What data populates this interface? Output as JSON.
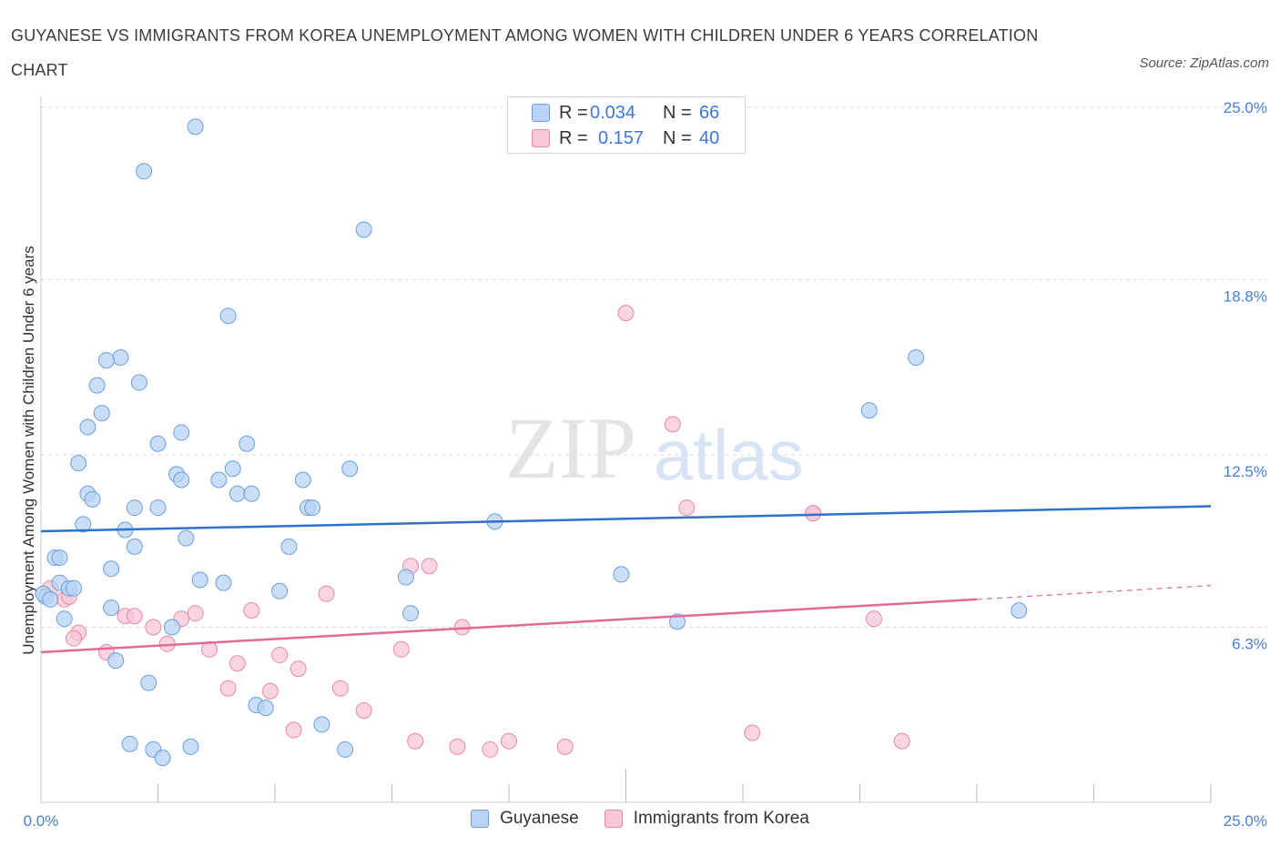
{
  "title": "GUYANESE VS IMMIGRANTS FROM KOREA UNEMPLOYMENT AMONG WOMEN WITH CHILDREN UNDER 6 YEARS CORRELATION CHART",
  "source": "Source: ZipAtlas.com",
  "watermark": {
    "zip": "ZIP",
    "atlas": "atlas"
  },
  "colors": {
    "guyanese_fill": "#b8d3f5",
    "guyanese_stroke": "#6a9fdc",
    "guyanese_line": "#2f72cc",
    "korea_fill": "#f8c6d5",
    "korea_stroke": "#e58aa8",
    "korea_line": "#e06b98",
    "tick_text": "#4a7fd1",
    "grid": "#d8d8d8"
  },
  "legend": {
    "rows": [
      {
        "r_label": "R =",
        "r_value": "0.034",
        "n_label": "N =",
        "n_value": "66"
      },
      {
        "r_label": "R =",
        "r_value": "0.157",
        "n_label": "N =",
        "n_value": "40"
      }
    ]
  },
  "bottom_legend": [
    "Guyanese",
    "Immigrants from Korea"
  ],
  "chart_data": {
    "type": "scatter",
    "title": "GUYANESE VS IMMIGRANTS FROM KOREA UNEMPLOYMENT AMONG WOMEN WITH CHILDREN UNDER 6 YEARS CORRELATION CHART",
    "xlabel": "",
    "ylabel": "Unemployment Among Women with Children Under 6 years",
    "xlim": [
      0,
      25
    ],
    "ylim": [
      0,
      25
    ],
    "x_tick_labels": [
      "0.0%",
      "25.0%"
    ],
    "y_ticks": [
      {
        "value": 6.3,
        "label": "6.3%"
      },
      {
        "value": 12.5,
        "label": "12.5%"
      },
      {
        "value": 18.8,
        "label": "18.8%"
      },
      {
        "value": 25.0,
        "label": "25.0%"
      }
    ],
    "grid": "horizontal dashed",
    "legend_position": "top-center",
    "series": [
      {
        "name": "Guyanese",
        "r": 0.034,
        "n": 66,
        "trend": {
          "x": [
            0,
            25
          ],
          "y": [
            9.75,
            10.65
          ]
        },
        "points": [
          [
            3.3,
            24.3
          ],
          [
            2.2,
            22.7
          ],
          [
            6.9,
            20.6
          ],
          [
            4.0,
            17.5
          ],
          [
            1.7,
            16.0
          ],
          [
            1.4,
            15.9
          ],
          [
            2.1,
            15.1
          ],
          [
            1.2,
            15.0
          ],
          [
            1.3,
            14.0
          ],
          [
            1.0,
            13.5
          ],
          [
            3.0,
            13.3
          ],
          [
            2.5,
            12.9
          ],
          [
            4.4,
            12.9
          ],
          [
            0.8,
            12.2
          ],
          [
            2.9,
            11.8
          ],
          [
            3.0,
            11.6
          ],
          [
            4.1,
            12.0
          ],
          [
            3.8,
            11.6
          ],
          [
            5.6,
            11.6
          ],
          [
            6.6,
            12.0
          ],
          [
            1.0,
            11.1
          ],
          [
            1.1,
            10.9
          ],
          [
            4.2,
            11.1
          ],
          [
            4.5,
            11.1
          ],
          [
            2.0,
            10.6
          ],
          [
            2.5,
            10.6
          ],
          [
            5.7,
            10.6
          ],
          [
            5.8,
            10.6
          ],
          [
            0.9,
            10.0
          ],
          [
            1.8,
            9.8
          ],
          [
            3.1,
            9.5
          ],
          [
            2.0,
            9.2
          ],
          [
            5.3,
            9.2
          ],
          [
            9.7,
            10.1
          ],
          [
            0.3,
            8.8
          ],
          [
            0.4,
            8.8
          ],
          [
            1.5,
            8.4
          ],
          [
            3.4,
            8.0
          ],
          [
            3.9,
            7.9
          ],
          [
            0.4,
            7.9
          ],
          [
            0.6,
            7.7
          ],
          [
            0.7,
            7.7
          ],
          [
            0.1,
            7.4
          ],
          [
            5.1,
            7.6
          ],
          [
            7.8,
            8.1
          ],
          [
            12.4,
            8.2
          ],
          [
            17.7,
            14.1
          ],
          [
            18.7,
            16.0
          ],
          [
            1.5,
            7.0
          ],
          [
            0.5,
            6.6
          ],
          [
            2.8,
            6.3
          ],
          [
            7.9,
            6.8
          ],
          [
            13.6,
            6.5
          ],
          [
            20.9,
            6.9
          ],
          [
            1.6,
            5.1
          ],
          [
            2.3,
            4.3
          ],
          [
            4.6,
            3.5
          ],
          [
            4.8,
            3.4
          ],
          [
            6.0,
            2.8
          ],
          [
            1.9,
            2.1
          ],
          [
            2.4,
            1.9
          ],
          [
            2.6,
            1.6
          ],
          [
            3.2,
            2.0
          ],
          [
            6.5,
            1.9
          ],
          [
            0.05,
            7.5
          ],
          [
            0.2,
            7.3
          ]
        ]
      },
      {
        "name": "Immigrants from Korea",
        "r": 0.157,
        "n": 40,
        "trend": {
          "x": [
            0,
            20
          ],
          "y": [
            5.4,
            7.3
          ],
          "dashed_extension": {
            "x": [
              20,
              25
            ],
            "y": [
              7.3,
              7.8
            ]
          }
        },
        "points": [
          [
            12.5,
            17.6
          ],
          [
            13.5,
            13.6
          ],
          [
            13.8,
            10.6
          ],
          [
            16.5,
            10.4
          ],
          [
            16.5,
            10.4
          ],
          [
            7.9,
            8.5
          ],
          [
            8.3,
            8.5
          ],
          [
            6.1,
            7.5
          ],
          [
            0.2,
            7.7
          ],
          [
            0.5,
            7.3
          ],
          [
            0.6,
            7.4
          ],
          [
            1.8,
            6.7
          ],
          [
            2.0,
            6.7
          ],
          [
            3.3,
            6.8
          ],
          [
            4.5,
            6.9
          ],
          [
            3.0,
            6.6
          ],
          [
            2.4,
            6.3
          ],
          [
            9.0,
            6.3
          ],
          [
            0.8,
            6.1
          ],
          [
            0.7,
            5.9
          ],
          [
            2.7,
            5.7
          ],
          [
            3.6,
            5.5
          ],
          [
            7.7,
            5.5
          ],
          [
            17.8,
            6.6
          ],
          [
            1.4,
            5.4
          ],
          [
            5.1,
            5.3
          ],
          [
            4.2,
            5.0
          ],
          [
            5.5,
            4.8
          ],
          [
            4.0,
            4.1
          ],
          [
            4.9,
            4.0
          ],
          [
            6.4,
            4.1
          ],
          [
            6.9,
            3.3
          ],
          [
            5.4,
            2.6
          ],
          [
            8.0,
            2.2
          ],
          [
            8.9,
            2.0
          ],
          [
            9.6,
            1.9
          ],
          [
            10.0,
            2.2
          ],
          [
            11.2,
            2.0
          ],
          [
            15.2,
            2.5
          ],
          [
            18.4,
            2.2
          ]
        ]
      }
    ]
  }
}
